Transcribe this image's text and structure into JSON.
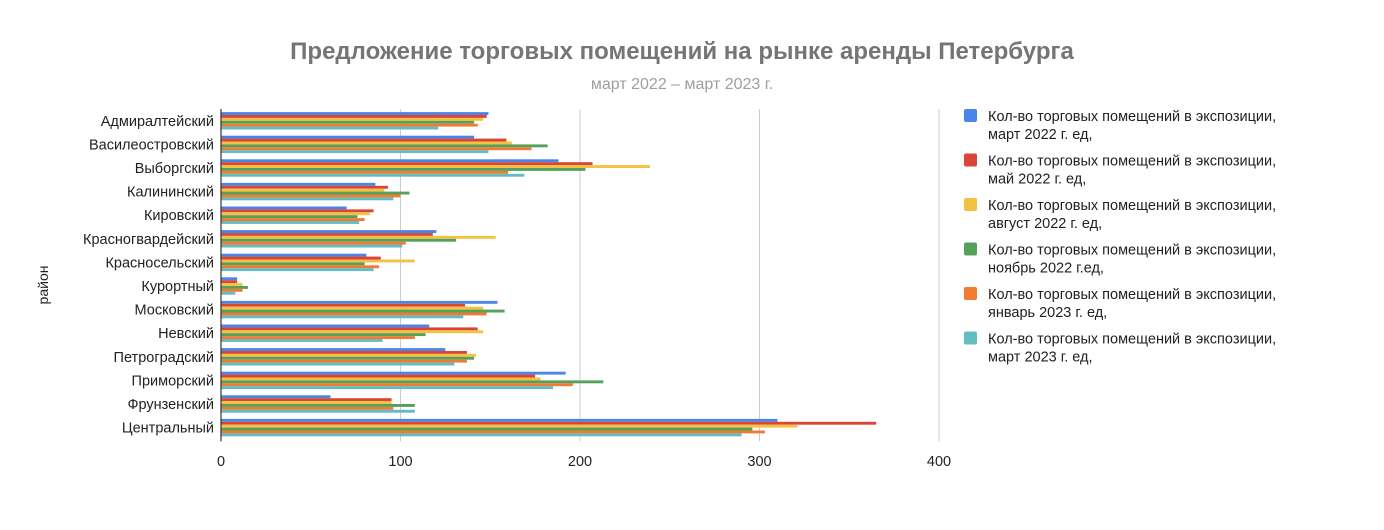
{
  "chart_data": {
    "type": "bar",
    "orientation": "horizontal",
    "title": "Предложение торговых помещений на рынке аренды Петербурга",
    "subtitle": "март 2022 – март 2023 г.",
    "ylabel": "район",
    "xlabel": "",
    "xlim": [
      0,
      400
    ],
    "xticks": [
      "0",
      "100",
      "200",
      "300",
      "400"
    ],
    "grid": true,
    "legend_position": "right",
    "categories": [
      "Адмиралтейский",
      "Василеостровский",
      "Выборгский",
      "Калининский",
      "Кировский",
      "Красногвардейский",
      "Красносельский",
      "Курортный",
      "Московский",
      "Невский",
      "Петроградский",
      "Приморский",
      "Фрунзенский",
      "Центральный"
    ],
    "series": [
      {
        "name": "Кол-во торговых помещений в экспозиции, март 2022 г. ед,",
        "name_lines": [
          "Кол-во торговых помещений в экспозиции,",
          "март 2022 г. ед,"
        ],
        "color": "#4a86e8",
        "values": [
          149,
          141,
          188,
          86,
          70,
          120,
          81,
          9,
          154,
          116,
          125,
          192,
          61,
          310
        ]
      },
      {
        "name": "Кол-во торговых помещений в экспозиции, май 2022 г. ед,",
        "name_lines": [
          "Кол-во торговых помещений в экспозиции,",
          "май 2022 г. ед,"
        ],
        "color": "#db4437",
        "values": [
          148,
          159,
          207,
          93,
          85,
          118,
          89,
          9,
          136,
          143,
          137,
          175,
          95,
          365
        ]
      },
      {
        "name": "Кол-во торговых помещений в экспозиции, август 2022 г. ед,",
        "name_lines": [
          "Кол-во торговых помещений в экспозиции,",
          "август 2022 г. ед,"
        ],
        "color": "#f4c242",
        "values": [
          146,
          162,
          239,
          91,
          83,
          153,
          108,
          12,
          146,
          146,
          142,
          178,
          95,
          321
        ]
      },
      {
        "name": "Кол-во торговых помещений в экспозиции, ноябрь 2022 г.ед,",
        "name_lines": [
          "Кол-во торговых помещений в экспозиции,",
          "ноябрь 2022 г.ед,"
        ],
        "color": "#55a05a",
        "values": [
          141,
          182,
          203,
          105,
          76,
          131,
          80,
          15,
          158,
          114,
          141,
          213,
          108,
          296
        ]
      },
      {
        "name": "Кол-во торговых помещений в экспозиции, январь 2023 г. ед,",
        "name_lines": [
          "Кол-во торговых помещений в экспозиции,",
          "январь 2023 г. ед,"
        ],
        "color": "#f07c33",
        "values": [
          143,
          173,
          160,
          100,
          80,
          103,
          88,
          12,
          148,
          108,
          137,
          196,
          96,
          303
        ]
      },
      {
        "name": "Кол-во торговых помещений в экспозиции, март 2023 г. ед,",
        "name_lines": [
          "Кол-во торговых помещений в экспозиции,",
          "март 2023 г. ед,"
        ],
        "color": "#63bcc2",
        "values": [
          121,
          149,
          169,
          96,
          77,
          101,
          85,
          8,
          135,
          90,
          130,
          185,
          108,
          290
        ]
      }
    ]
  }
}
